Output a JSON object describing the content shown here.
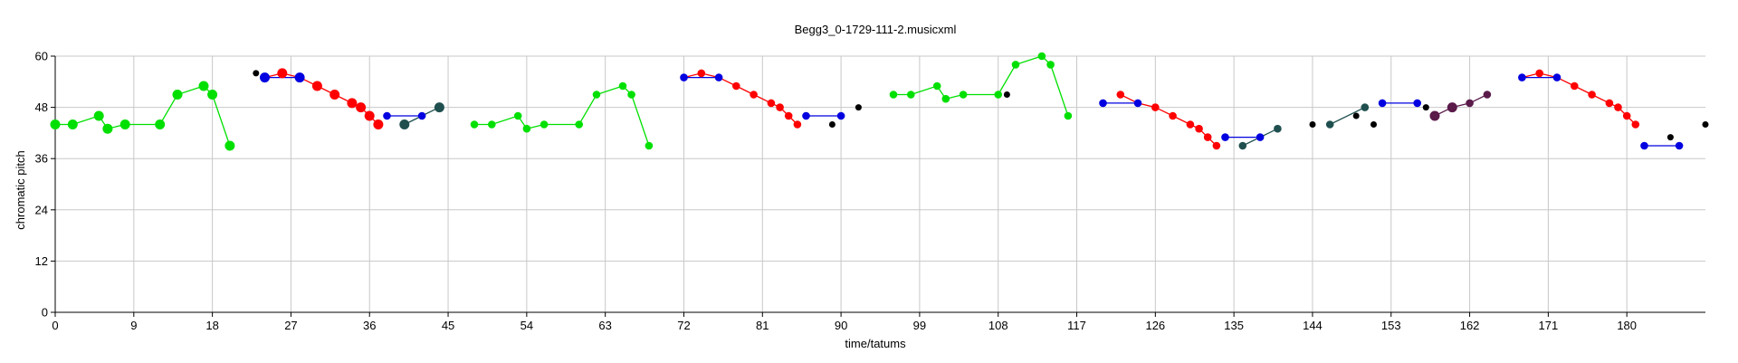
{
  "chart_data": {
    "type": "line",
    "title": "Begg3_0-1729-111-2.musicxml",
    "xlabel": "time/tatums",
    "ylabel": "chromatic pitch",
    "xlim": [
      0,
      189
    ],
    "ylim": [
      0,
      60
    ],
    "x_ticks": [
      0,
      9,
      18,
      27,
      36,
      45,
      54,
      63,
      72,
      81,
      90,
      99,
      108,
      117,
      126,
      135,
      144,
      153,
      162,
      171,
      180
    ],
    "y_ticks": [
      0,
      12,
      24,
      36,
      48,
      60
    ],
    "grid": true,
    "colors": {
      "green": "#00e000",
      "red": "#ff0000",
      "blue": "#0000e0",
      "black": "#000000",
      "teal": "#1f4f4f",
      "plum": "#5a1a4a"
    },
    "segments": [
      {
        "color": "green",
        "points": [
          [
            0,
            44
          ],
          [
            2,
            44
          ],
          [
            5,
            46
          ],
          [
            6,
            43
          ],
          [
            8,
            44
          ],
          [
            12,
            44
          ],
          [
            14,
            51
          ],
          [
            17,
            53
          ],
          [
            18,
            51
          ],
          [
            20,
            39
          ]
        ]
      },
      {
        "color": "red",
        "points": [
          [
            24,
            55
          ],
          [
            26,
            56
          ],
          [
            28,
            55
          ],
          [
            30,
            53
          ],
          [
            32,
            51
          ],
          [
            34,
            49
          ],
          [
            35,
            48
          ],
          [
            36,
            46
          ],
          [
            37,
            44
          ]
        ]
      },
      {
        "color": "blue",
        "points": [
          [
            24,
            55
          ],
          [
            28,
            55
          ]
        ]
      },
      {
        "color": "blue",
        "points": [
          [
            38,
            46
          ],
          [
            42,
            46
          ]
        ]
      },
      {
        "color": "teal",
        "points": [
          [
            40,
            44
          ],
          [
            42,
            46
          ],
          [
            44,
            48
          ]
        ]
      },
      {
        "color": "green",
        "points": [
          [
            48,
            44
          ],
          [
            50,
            44
          ],
          [
            53,
            46
          ],
          [
            54,
            43
          ],
          [
            56,
            44
          ],
          [
            60,
            44
          ],
          [
            62,
            51
          ],
          [
            65,
            53
          ],
          [
            66,
            51
          ],
          [
            68,
            39
          ]
        ]
      },
      {
        "color": "red",
        "points": [
          [
            72,
            55
          ],
          [
            74,
            56
          ],
          [
            76,
            55
          ],
          [
            78,
            53
          ],
          [
            80,
            51
          ],
          [
            82,
            49
          ],
          [
            83,
            48
          ],
          [
            84,
            46
          ],
          [
            85,
            44
          ]
        ]
      },
      {
        "color": "blue",
        "points": [
          [
            72,
            55
          ],
          [
            76,
            55
          ]
        ]
      },
      {
        "color": "blue",
        "points": [
          [
            86,
            46
          ],
          [
            90,
            46
          ]
        ]
      },
      {
        "color": "green",
        "points": [
          [
            96,
            51
          ],
          [
            98,
            51
          ],
          [
            101,
            53
          ],
          [
            102,
            50
          ],
          [
            104,
            51
          ],
          [
            108,
            51
          ],
          [
            110,
            58
          ],
          [
            113,
            60
          ],
          [
            114,
            58
          ],
          [
            116,
            46
          ]
        ]
      },
      {
        "color": "red",
        "points": [
          [
            122,
            51
          ],
          [
            124,
            49
          ],
          [
            126,
            48
          ],
          [
            128,
            46
          ],
          [
            130,
            44
          ],
          [
            131,
            43
          ],
          [
            132,
            41
          ],
          [
            133,
            39
          ]
        ]
      },
      {
        "color": "blue",
        "points": [
          [
            120,
            49
          ],
          [
            124,
            49
          ]
        ]
      },
      {
        "color": "blue",
        "points": [
          [
            134,
            41
          ],
          [
            138,
            41
          ]
        ]
      },
      {
        "color": "teal",
        "points": [
          [
            136,
            39
          ],
          [
            138,
            41
          ],
          [
            140,
            43
          ]
        ]
      },
      {
        "color": "teal",
        "points": [
          [
            146,
            44
          ],
          [
            150,
            48
          ]
        ]
      },
      {
        "color": "blue",
        "points": [
          [
            152,
            49
          ],
          [
            156,
            49
          ]
        ]
      },
      {
        "color": "plum",
        "points": [
          [
            158,
            46
          ],
          [
            160,
            48
          ],
          [
            162,
            49
          ],
          [
            164,
            51
          ]
        ]
      },
      {
        "color": "red",
        "points": [
          [
            168,
            55
          ],
          [
            170,
            56
          ],
          [
            172,
            55
          ],
          [
            174,
            53
          ],
          [
            176,
            51
          ],
          [
            178,
            49
          ],
          [
            179,
            48
          ],
          [
            180,
            46
          ],
          [
            181,
            44
          ]
        ]
      },
      {
        "color": "blue",
        "points": [
          [
            168,
            55
          ],
          [
            172,
            55
          ]
        ]
      },
      {
        "color": "blue",
        "points": [
          [
            182,
            39
          ],
          [
            186,
            39
          ]
        ]
      }
    ],
    "points": [
      {
        "x": 0,
        "y": 44,
        "c": "green",
        "s": "l"
      },
      {
        "x": 2,
        "y": 44,
        "c": "green",
        "s": "l"
      },
      {
        "x": 5,
        "y": 46,
        "c": "green",
        "s": "l"
      },
      {
        "x": 6,
        "y": 43,
        "c": "green",
        "s": "l"
      },
      {
        "x": 8,
        "y": 44,
        "c": "green",
        "s": "l"
      },
      {
        "x": 12,
        "y": 44,
        "c": "green",
        "s": "l"
      },
      {
        "x": 14,
        "y": 51,
        "c": "green",
        "s": "l"
      },
      {
        "x": 17,
        "y": 53,
        "c": "green",
        "s": "l"
      },
      {
        "x": 18,
        "y": 51,
        "c": "green",
        "s": "l"
      },
      {
        "x": 20,
        "y": 39,
        "c": "green",
        "s": "l"
      },
      {
        "x": 23,
        "y": 56,
        "c": "black",
        "s": "s"
      },
      {
        "x": 24,
        "y": 55,
        "c": "blue",
        "s": "l"
      },
      {
        "x": 26,
        "y": 56,
        "c": "red",
        "s": "l"
      },
      {
        "x": 28,
        "y": 55,
        "c": "blue",
        "s": "l"
      },
      {
        "x": 30,
        "y": 53,
        "c": "red",
        "s": "l"
      },
      {
        "x": 32,
        "y": 51,
        "c": "red",
        "s": "l"
      },
      {
        "x": 34,
        "y": 49,
        "c": "red",
        "s": "l"
      },
      {
        "x": 35,
        "y": 48,
        "c": "red",
        "s": "l"
      },
      {
        "x": 36,
        "y": 46,
        "c": "red",
        "s": "l"
      },
      {
        "x": 37,
        "y": 44,
        "c": "red",
        "s": "l"
      },
      {
        "x": 38,
        "y": 46,
        "c": "blue",
        "s": "m"
      },
      {
        "x": 40,
        "y": 44,
        "c": "teal",
        "s": "l"
      },
      {
        "x": 42,
        "y": 46,
        "c": "blue",
        "s": "m"
      },
      {
        "x": 44,
        "y": 48,
        "c": "teal",
        "s": "l"
      },
      {
        "x": 48,
        "y": 44,
        "c": "green",
        "s": "m"
      },
      {
        "x": 50,
        "y": 44,
        "c": "green",
        "s": "m"
      },
      {
        "x": 53,
        "y": 46,
        "c": "green",
        "s": "m"
      },
      {
        "x": 54,
        "y": 43,
        "c": "green",
        "s": "m"
      },
      {
        "x": 56,
        "y": 44,
        "c": "green",
        "s": "m"
      },
      {
        "x": 60,
        "y": 44,
        "c": "green",
        "s": "m"
      },
      {
        "x": 62,
        "y": 51,
        "c": "green",
        "s": "m"
      },
      {
        "x": 65,
        "y": 53,
        "c": "green",
        "s": "m"
      },
      {
        "x": 66,
        "y": 51,
        "c": "green",
        "s": "m"
      },
      {
        "x": 68,
        "y": 39,
        "c": "green",
        "s": "m"
      },
      {
        "x": 72,
        "y": 55,
        "c": "blue",
        "s": "m"
      },
      {
        "x": 74,
        "y": 56,
        "c": "red",
        "s": "m"
      },
      {
        "x": 76,
        "y": 55,
        "c": "blue",
        "s": "m"
      },
      {
        "x": 78,
        "y": 53,
        "c": "red",
        "s": "m"
      },
      {
        "x": 80,
        "y": 51,
        "c": "red",
        "s": "m"
      },
      {
        "x": 82,
        "y": 49,
        "c": "red",
        "s": "m"
      },
      {
        "x": 83,
        "y": 48,
        "c": "red",
        "s": "m"
      },
      {
        "x": 84,
        "y": 46,
        "c": "red",
        "s": "m"
      },
      {
        "x": 85,
        "y": 44,
        "c": "red",
        "s": "m"
      },
      {
        "x": 86,
        "y": 46,
        "c": "blue",
        "s": "m"
      },
      {
        "x": 89,
        "y": 44,
        "c": "black",
        "s": "s"
      },
      {
        "x": 90,
        "y": 46,
        "c": "blue",
        "s": "m"
      },
      {
        "x": 92,
        "y": 48,
        "c": "black",
        "s": "s"
      },
      {
        "x": 96,
        "y": 51,
        "c": "green",
        "s": "m"
      },
      {
        "x": 98,
        "y": 51,
        "c": "green",
        "s": "m"
      },
      {
        "x": 101,
        "y": 53,
        "c": "green",
        "s": "m"
      },
      {
        "x": 102,
        "y": 50,
        "c": "green",
        "s": "m"
      },
      {
        "x": 104,
        "y": 51,
        "c": "green",
        "s": "m"
      },
      {
        "x": 108,
        "y": 51,
        "c": "green",
        "s": "m"
      },
      {
        "x": 109,
        "y": 51,
        "c": "black",
        "s": "s"
      },
      {
        "x": 110,
        "y": 58,
        "c": "green",
        "s": "m"
      },
      {
        "x": 113,
        "y": 60,
        "c": "green",
        "s": "m"
      },
      {
        "x": 114,
        "y": 58,
        "c": "green",
        "s": "m"
      },
      {
        "x": 116,
        "y": 46,
        "c": "green",
        "s": "m"
      },
      {
        "x": 120,
        "y": 49,
        "c": "blue",
        "s": "m"
      },
      {
        "x": 122,
        "y": 51,
        "c": "red",
        "s": "m"
      },
      {
        "x": 124,
        "y": 49,
        "c": "blue",
        "s": "m"
      },
      {
        "x": 126,
        "y": 48,
        "c": "red",
        "s": "m"
      },
      {
        "x": 128,
        "y": 46,
        "c": "red",
        "s": "m"
      },
      {
        "x": 130,
        "y": 44,
        "c": "red",
        "s": "m"
      },
      {
        "x": 131,
        "y": 43,
        "c": "red",
        "s": "m"
      },
      {
        "x": 132,
        "y": 41,
        "c": "red",
        "s": "m"
      },
      {
        "x": 133,
        "y": 39,
        "c": "red",
        "s": "m"
      },
      {
        "x": 134,
        "y": 41,
        "c": "blue",
        "s": "m"
      },
      {
        "x": 136,
        "y": 39,
        "c": "teal",
        "s": "m"
      },
      {
        "x": 138,
        "y": 41,
        "c": "blue",
        "s": "m"
      },
      {
        "x": 140,
        "y": 43,
        "c": "teal",
        "s": "m"
      },
      {
        "x": 144,
        "y": 44,
        "c": "black",
        "s": "s"
      },
      {
        "x": 146,
        "y": 44,
        "c": "teal",
        "s": "m"
      },
      {
        "x": 149,
        "y": 46,
        "c": "black",
        "s": "s"
      },
      {
        "x": 150,
        "y": 48,
        "c": "teal",
        "s": "m"
      },
      {
        "x": 151,
        "y": 44,
        "c": "black",
        "s": "s"
      },
      {
        "x": 152,
        "y": 49,
        "c": "blue",
        "s": "m"
      },
      {
        "x": 156,
        "y": 49,
        "c": "blue",
        "s": "m"
      },
      {
        "x": 157,
        "y": 48,
        "c": "black",
        "s": "s"
      },
      {
        "x": 158,
        "y": 46,
        "c": "plum",
        "s": "l"
      },
      {
        "x": 160,
        "y": 48,
        "c": "plum",
        "s": "l"
      },
      {
        "x": 162,
        "y": 49,
        "c": "plum",
        "s": "m"
      },
      {
        "x": 164,
        "y": 51,
        "c": "plum",
        "s": "m"
      },
      {
        "x": 168,
        "y": 55,
        "c": "blue",
        "s": "m"
      },
      {
        "x": 170,
        "y": 56,
        "c": "red",
        "s": "m"
      },
      {
        "x": 172,
        "y": 55,
        "c": "blue",
        "s": "m"
      },
      {
        "x": 174,
        "y": 53,
        "c": "red",
        "s": "m"
      },
      {
        "x": 176,
        "y": 51,
        "c": "red",
        "s": "m"
      },
      {
        "x": 178,
        "y": 49,
        "c": "red",
        "s": "m"
      },
      {
        "x": 179,
        "y": 48,
        "c": "red",
        "s": "m"
      },
      {
        "x": 180,
        "y": 46,
        "c": "red",
        "s": "m"
      },
      {
        "x": 181,
        "y": 44,
        "c": "red",
        "s": "m"
      },
      {
        "x": 182,
        "y": 39,
        "c": "blue",
        "s": "m"
      },
      {
        "x": 185,
        "y": 41,
        "c": "black",
        "s": "s"
      },
      {
        "x": 186,
        "y": 39,
        "c": "blue",
        "s": "m"
      },
      {
        "x": 189,
        "y": 44,
        "c": "black",
        "s": "s"
      }
    ]
  }
}
